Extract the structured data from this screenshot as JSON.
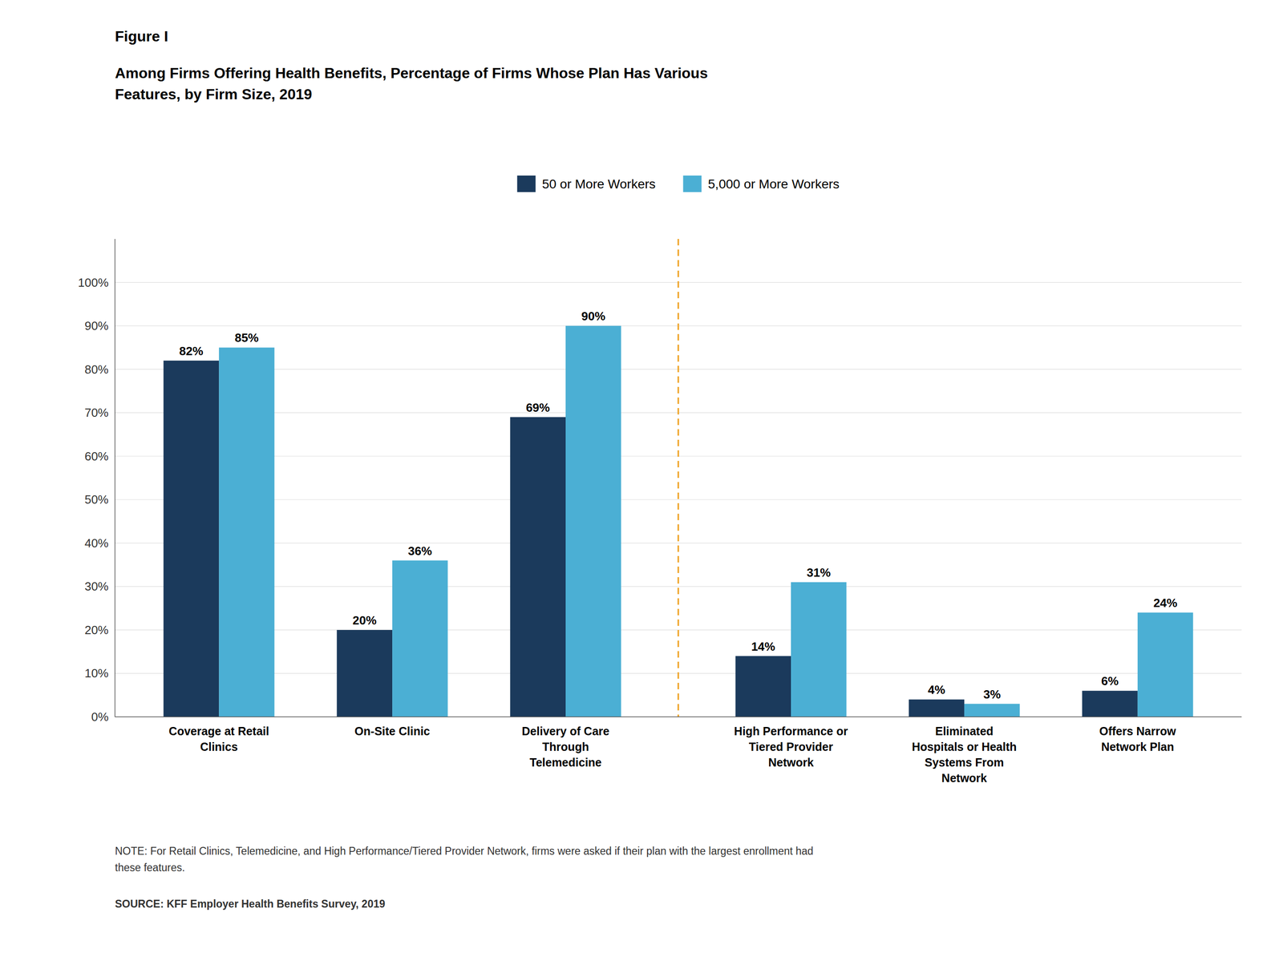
{
  "chart_data": {
    "type": "bar",
    "figure_label": "Figure I",
    "title": "Among Firms Offering Health Benefits, Percentage of Firms Whose Plan Has Various\nFeatures, by Firm Size, 2019",
    "categories": [
      "Coverage at Retail\nClinics",
      "On-Site Clinic",
      "Delivery of Care\nThrough\nTelemedicine",
      "High Performance or\nTiered Provider\nNetwork",
      "Eliminated\nHospitals or Health\nSystems From\nNetwork",
      "Offers Narrow\nNetwork Plan"
    ],
    "series": [
      {
        "name": "50 or More Workers",
        "color": "#1B3A5C",
        "values": [
          82,
          20,
          69,
          14,
          4,
          6
        ],
        "value_labels": [
          "82%",
          "20%",
          "69%",
          "14%",
          "4%",
          "6%"
        ]
      },
      {
        "name": "5,000 or More Workers",
        "color": "#4BAFD4",
        "values": [
          85,
          36,
          90,
          31,
          3,
          24
        ],
        "value_labels": [
          "85%",
          "36%",
          "90%",
          "31%",
          "3%",
          "24%"
        ]
      }
    ],
    "ylim": [
      0,
      110
    ],
    "yticks": [
      {
        "value": 0,
        "label": "0%"
      },
      {
        "value": 10,
        "label": "10%"
      },
      {
        "value": 20,
        "label": "20%"
      },
      {
        "value": 30,
        "label": "30%"
      },
      {
        "value": 40,
        "label": "40%"
      },
      {
        "value": 50,
        "label": "50%"
      },
      {
        "value": 60,
        "label": "60%"
      },
      {
        "value": 70,
        "label": "70%"
      },
      {
        "value": 80,
        "label": "80%"
      },
      {
        "value": 90,
        "label": "90%"
      },
      {
        "value": 100,
        "label": "100%"
      }
    ],
    "grid": true,
    "legend": "top",
    "data_labels": true,
    "divider_color": "#F0A830",
    "note": "NOTE: For Retail Clinics, Telemedicine, and High Performance/Tiered Provider Network, firms were asked if their plan with the largest enrollment had\nthese features.",
    "source": "SOURCE: KFF Employer Health Benefits Survey, 2019"
  }
}
